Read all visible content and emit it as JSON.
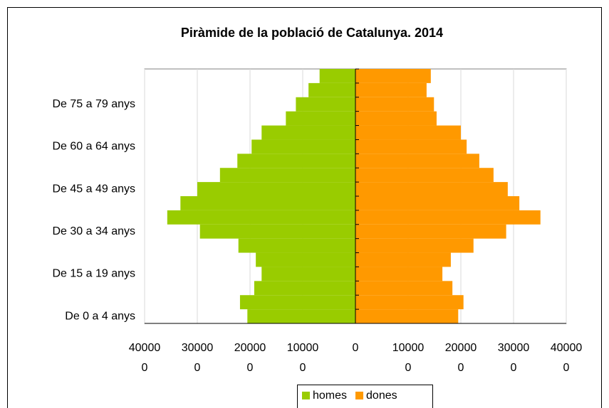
{
  "chart_data": {
    "type": "pyramid",
    "title": "Piràmide de la població de Catalunya. 2014",
    "categories": [
      "De 0 a 4 anys",
      null,
      null,
      "De 15 a 19 anys",
      null,
      null,
      "De 30 a 34 anys",
      null,
      null,
      "De 45 a 49 anys",
      null,
      null,
      "De 60 a 64 anys",
      null,
      null,
      "De 75 a 79 anys",
      null,
      null
    ],
    "series": [
      {
        "name": "homes",
        "color": "#99cc00",
        "values": [
          -205000,
          -219000,
          -192000,
          -178000,
          -189000,
          -222000,
          -295000,
          -357000,
          -332000,
          -300000,
          -257000,
          -224000,
          -197000,
          -178000,
          -132000,
          -113000,
          -89000,
          -68000
        ]
      },
      {
        "name": "dones",
        "color": "#ff9900",
        "values": [
          195000,
          205000,
          184000,
          165000,
          181000,
          224000,
          286000,
          351000,
          311000,
          289000,
          262000,
          235000,
          211000,
          200000,
          154000,
          149000,
          135000,
          143000
        ]
      }
    ],
    "xlim": [
      -400000,
      400000
    ],
    "xticks": [
      {
        "value": -400000,
        "label": "400000"
      },
      {
        "value": -300000,
        "label": "300000"
      },
      {
        "value": -200000,
        "label": "200000"
      },
      {
        "value": -100000,
        "label": "100000"
      },
      0,
      100000,
      200000,
      300000,
      400000
    ],
    "grid": true,
    "legend": "bottom"
  }
}
